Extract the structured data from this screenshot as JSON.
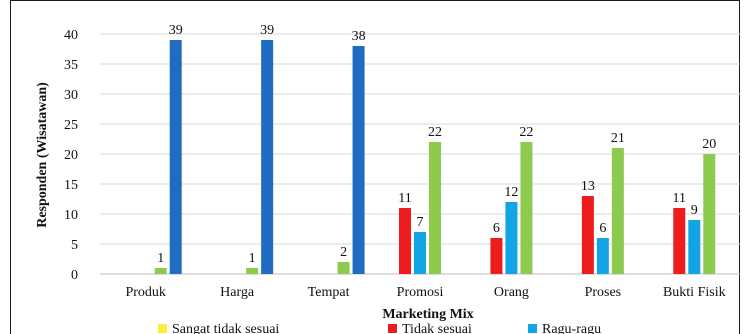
{
  "chart_data": {
    "type": "bar",
    "title": "",
    "xlabel": "Marketing Mix",
    "ylabel": "Responden (Wisatawan)",
    "ylim": [
      0,
      40
    ],
    "yticks": [
      0,
      5,
      10,
      15,
      20,
      25,
      30,
      35,
      40
    ],
    "grid": true,
    "legend_position": "bottom",
    "categories": [
      "Produk",
      "Harga",
      "Tempat",
      "Promosi",
      "Orang",
      "Proses",
      "Bukti Fisik"
    ],
    "series": [
      {
        "name": "Sangat tidak sesuai",
        "color": "#FFEB3B",
        "values": [
          0,
          0,
          0,
          0,
          0,
          0,
          0
        ]
      },
      {
        "name": "Tidak sesuai",
        "color": "#EE1C1C",
        "values": [
          0,
          0,
          0,
          11,
          6,
          13,
          11
        ]
      },
      {
        "name": "Ragu-ragu",
        "color": "#12A5E6",
        "values": [
          0,
          0,
          0,
          7,
          12,
          6,
          9
        ]
      },
      {
        "name": "",
        "color": "#8CCB4E",
        "values": [
          1,
          1,
          2,
          22,
          22,
          21,
          20
        ]
      },
      {
        "name": "",
        "color": "#1F6CC1",
        "values": [
          39,
          39,
          38,
          0,
          0,
          0,
          0
        ]
      }
    ]
  }
}
